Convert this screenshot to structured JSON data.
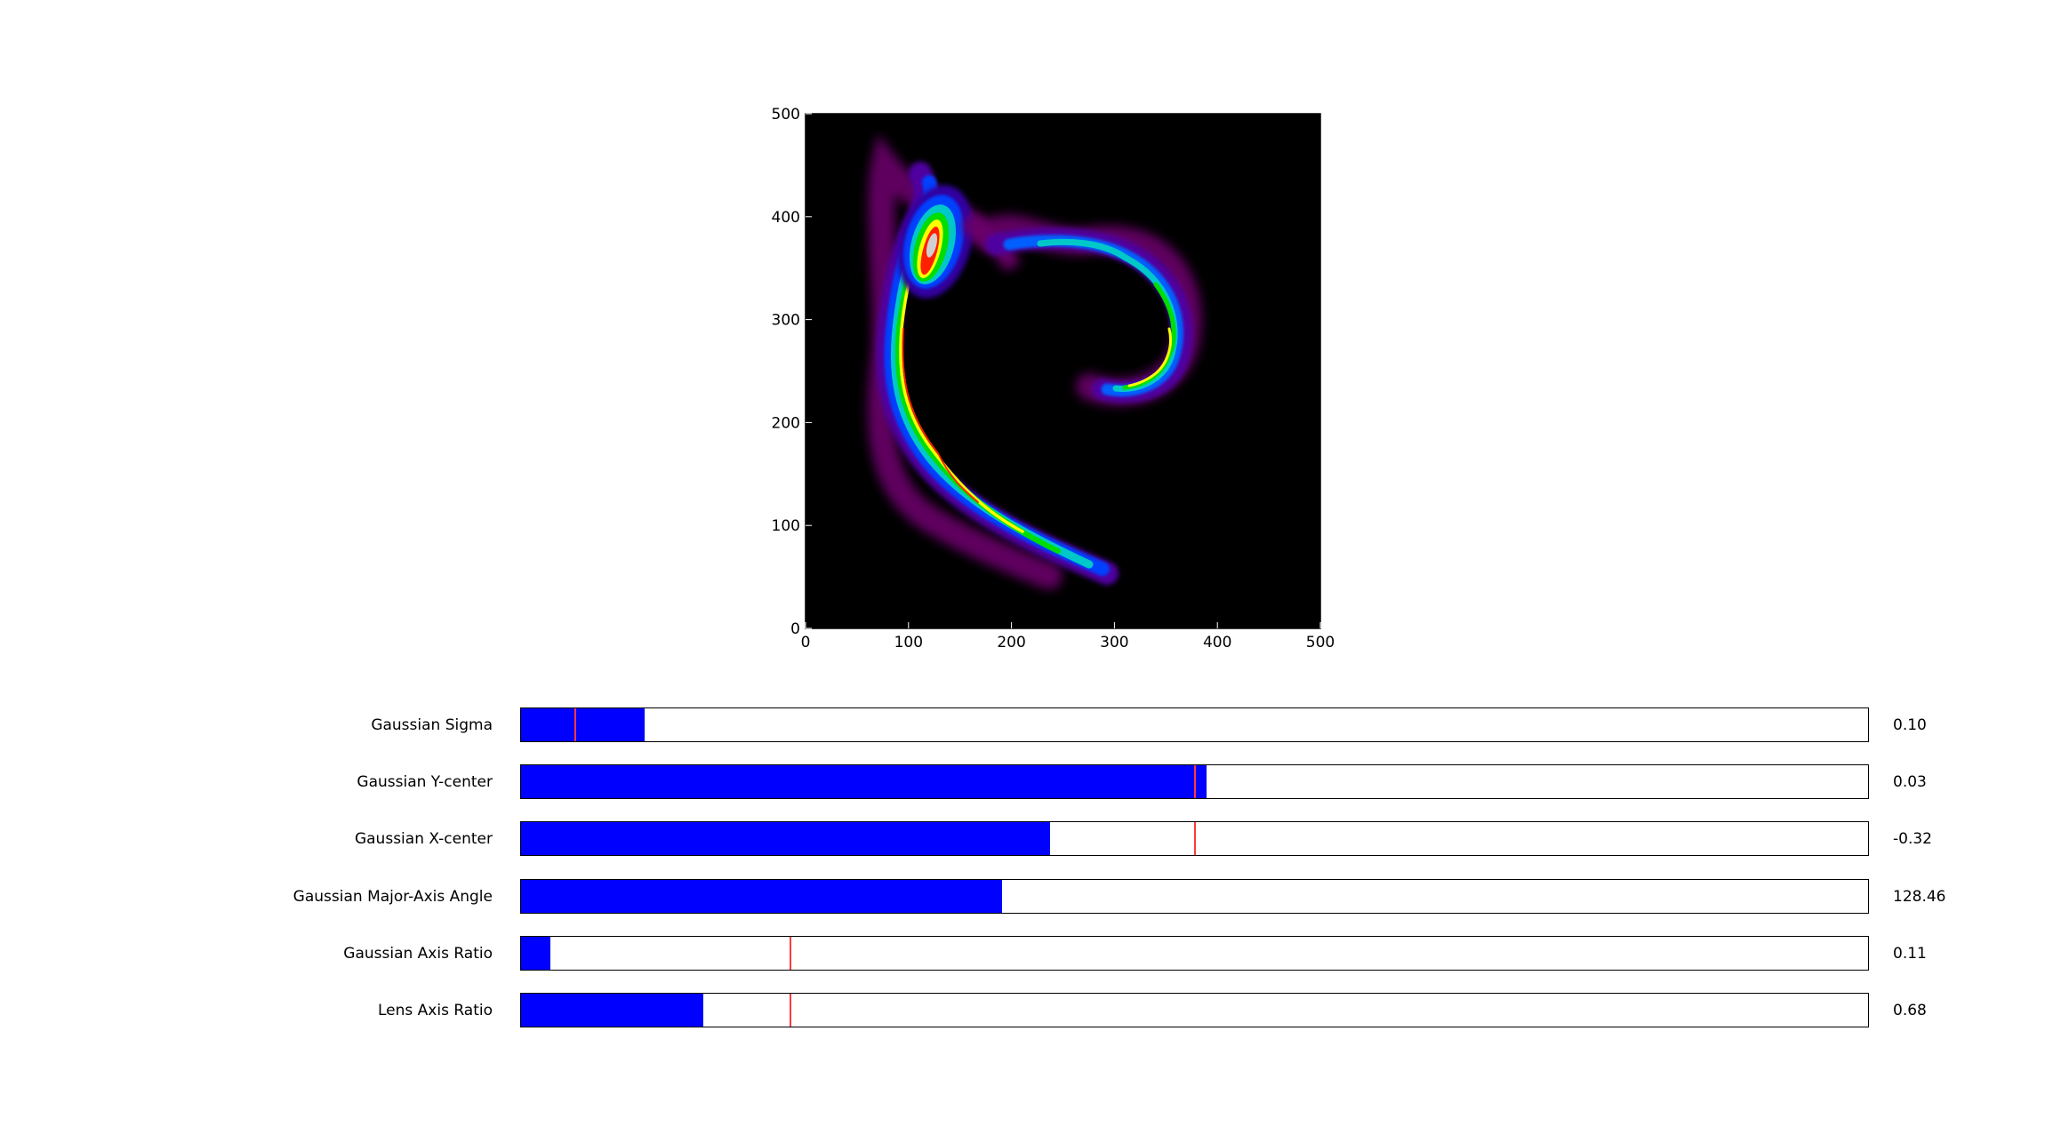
{
  "plot": {
    "x_ticks": [
      "0",
      "100",
      "200",
      "300",
      "400",
      "500"
    ],
    "y_ticks": [
      "0",
      "100",
      "200",
      "300",
      "400",
      "500"
    ],
    "x_range": [
      0,
      500
    ],
    "y_range": [
      0,
      500
    ],
    "background": "#000000",
    "colormap": "nipy_spectral",
    "description_icon": "lensed-arc-image"
  },
  "sliders": [
    {
      "label": "Gaussian Sigma",
      "value": "0.10",
      "fill_fraction": 0.092,
      "initial_fraction": 0.04
    },
    {
      "label": "Gaussian Y-center",
      "value": "0.03",
      "fill_fraction": 0.509,
      "initial_fraction": 0.5
    },
    {
      "label": "Gaussian X-center",
      "value": "-0.32",
      "fill_fraction": 0.393,
      "initial_fraction": 0.5
    },
    {
      "label": "Gaussian Major-Axis Angle",
      "value": "128.46",
      "fill_fraction": 0.357,
      "initial_fraction": 0.0
    },
    {
      "label": "Gaussian Axis Ratio",
      "value": "0.11",
      "fill_fraction": 0.022,
      "initial_fraction": 0.2
    },
    {
      "label": "Lens Axis Ratio",
      "value": "0.68",
      "fill_fraction": 0.135,
      "initial_fraction": 0.2
    }
  ],
  "colors": {
    "slider_fill": "#0000ff",
    "slider_initial_marker": "#ff3b3b",
    "slider_border": "#000000"
  }
}
